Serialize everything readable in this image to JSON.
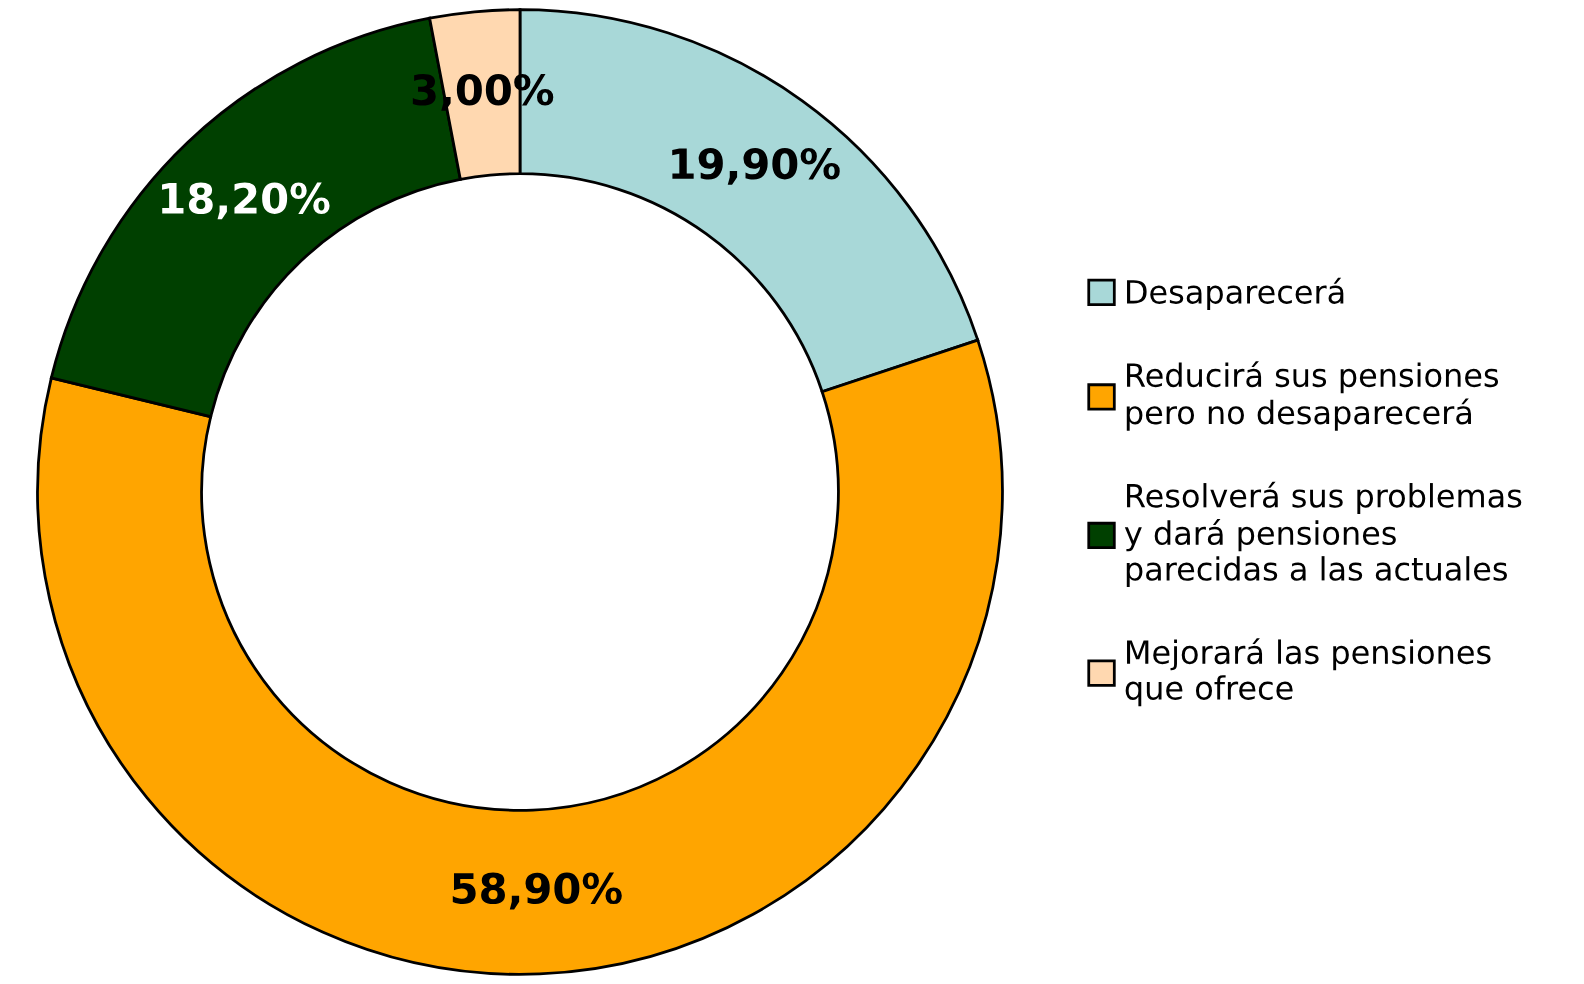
{
  "chart_data": {
    "type": "donut",
    "categories": [
      "Desaparecerá",
      "Reducirá sus pensiones\npero no desaparecerá",
      "Resolverá sus problemas\ny dará pensiones\nparecidas a las actuales",
      "Mejorará las pensiones\nque ofrece"
    ],
    "values": [
      19.9,
      58.9,
      18.2,
      3.0
    ],
    "value_labels": [
      "19,90%",
      "58,90%",
      "18,20%",
      "3,00%"
    ],
    "colors": [
      "#a8d8d8",
      "#ffa500",
      "#004000",
      "#ffd8b0"
    ],
    "legend": "right"
  }
}
